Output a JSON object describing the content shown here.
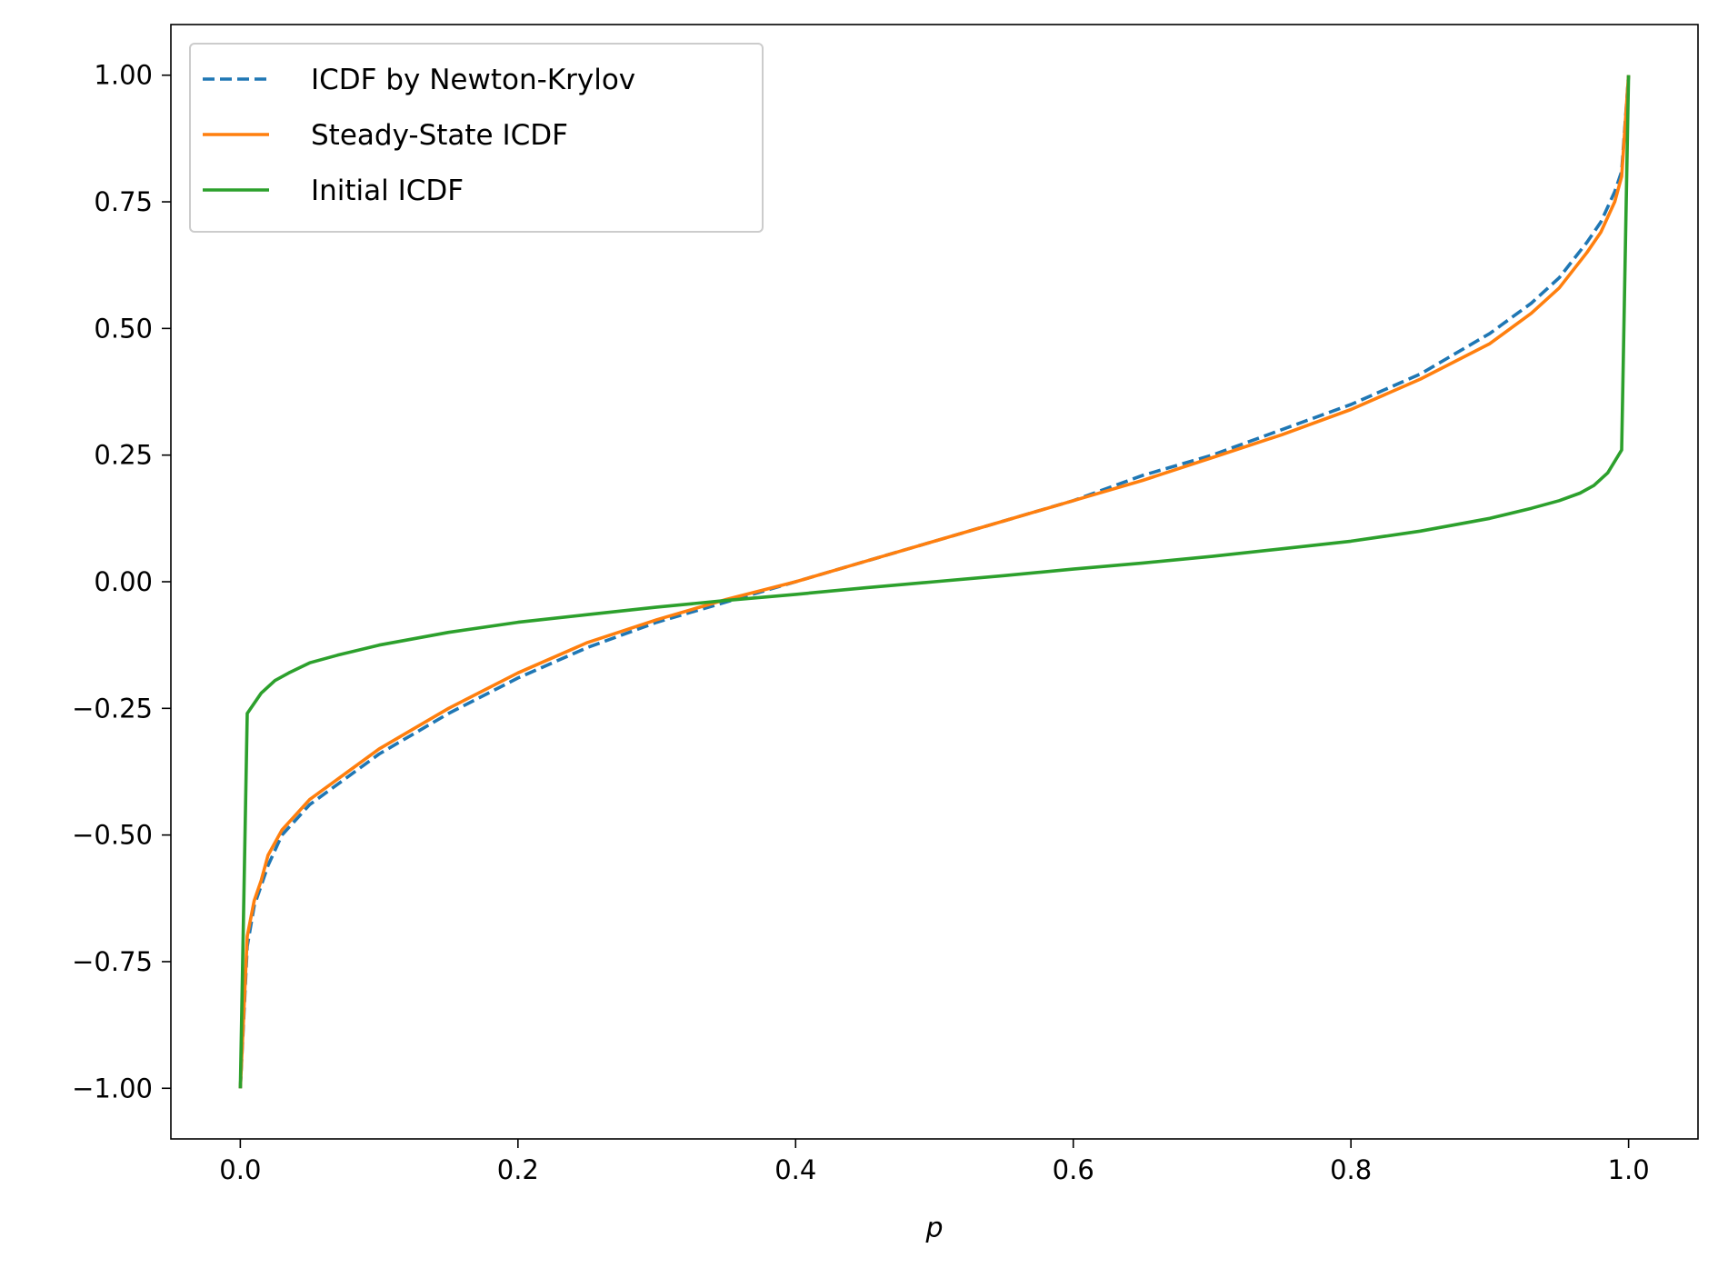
{
  "chart_data": {
    "type": "line",
    "title": "",
    "xlabel": "p",
    "ylabel": "",
    "xlim": [
      -0.05,
      1.05
    ],
    "ylim": [
      -1.1,
      1.1
    ],
    "xticks": [
      0.0,
      0.2,
      0.4,
      0.6,
      0.8,
      1.0
    ],
    "xtick_labels": [
      "0.0",
      "0.2",
      "0.4",
      "0.6",
      "0.8",
      "1.0"
    ],
    "yticks": [
      -1.0,
      -0.75,
      -0.5,
      -0.25,
      0.0,
      0.25,
      0.5,
      0.75,
      1.0
    ],
    "ytick_labels": [
      "−1.00",
      "−0.75",
      "−0.50",
      "−0.25",
      "0.00",
      "0.25",
      "0.50",
      "0.75",
      "1.00"
    ],
    "grid": false,
    "legend_position": "top-left",
    "series": [
      {
        "name": "ICDF by Newton-Krylov",
        "color": "#1f77b4",
        "style": "dashed",
        "x": [
          0.0,
          0.005,
          0.01,
          0.015,
          0.02,
          0.03,
          0.04,
          0.05,
          0.07,
          0.1,
          0.15,
          0.2,
          0.25,
          0.3,
          0.35,
          0.4,
          0.45,
          0.5,
          0.55,
          0.6,
          0.65,
          0.7,
          0.75,
          0.8,
          0.85,
          0.9,
          0.93,
          0.95,
          0.97,
          0.98,
          0.99,
          0.995,
          1.0
        ],
        "y": [
          -1.0,
          -0.72,
          -0.64,
          -0.6,
          -0.56,
          -0.5,
          -0.47,
          -0.44,
          -0.4,
          -0.34,
          -0.26,
          -0.19,
          -0.13,
          -0.08,
          -0.04,
          0.0,
          0.04,
          0.08,
          0.12,
          0.16,
          0.21,
          0.25,
          0.3,
          0.35,
          0.41,
          0.49,
          0.55,
          0.6,
          0.67,
          0.71,
          0.77,
          0.81,
          1.0
        ]
      },
      {
        "name": "Steady-State ICDF",
        "color": "#ff7f0e",
        "style": "solid",
        "x": [
          0.0,
          0.005,
          0.01,
          0.015,
          0.02,
          0.03,
          0.04,
          0.05,
          0.07,
          0.1,
          0.15,
          0.2,
          0.25,
          0.3,
          0.35,
          0.4,
          0.45,
          0.5,
          0.55,
          0.6,
          0.65,
          0.7,
          0.75,
          0.8,
          0.85,
          0.9,
          0.93,
          0.95,
          0.97,
          0.98,
          0.99,
          0.995,
          1.0
        ],
        "y": [
          -1.0,
          -0.7,
          -0.63,
          -0.59,
          -0.54,
          -0.49,
          -0.46,
          -0.43,
          -0.39,
          -0.33,
          -0.25,
          -0.18,
          -0.12,
          -0.075,
          -0.035,
          0.0,
          0.04,
          0.08,
          0.12,
          0.16,
          0.2,
          0.245,
          0.29,
          0.34,
          0.4,
          0.47,
          0.53,
          0.58,
          0.65,
          0.69,
          0.75,
          0.8,
          1.0
        ]
      },
      {
        "name": "Initial ICDF",
        "color": "#2ca02c",
        "style": "solid",
        "x": [
          0.0,
          0.005,
          0.015,
          0.025,
          0.035,
          0.05,
          0.07,
          0.1,
          0.15,
          0.2,
          0.25,
          0.3,
          0.35,
          0.4,
          0.45,
          0.5,
          0.55,
          0.6,
          0.65,
          0.7,
          0.75,
          0.8,
          0.85,
          0.9,
          0.93,
          0.95,
          0.965,
          0.975,
          0.985,
          0.995,
          1.0
        ],
        "y": [
          -1.0,
          -0.26,
          -0.22,
          -0.195,
          -0.18,
          -0.16,
          -0.145,
          -0.125,
          -0.1,
          -0.08,
          -0.065,
          -0.05,
          -0.037,
          -0.025,
          -0.012,
          0.0,
          0.012,
          0.025,
          0.037,
          0.05,
          0.065,
          0.08,
          0.1,
          0.125,
          0.145,
          0.16,
          0.175,
          0.19,
          0.215,
          0.26,
          1.0
        ]
      }
    ]
  }
}
